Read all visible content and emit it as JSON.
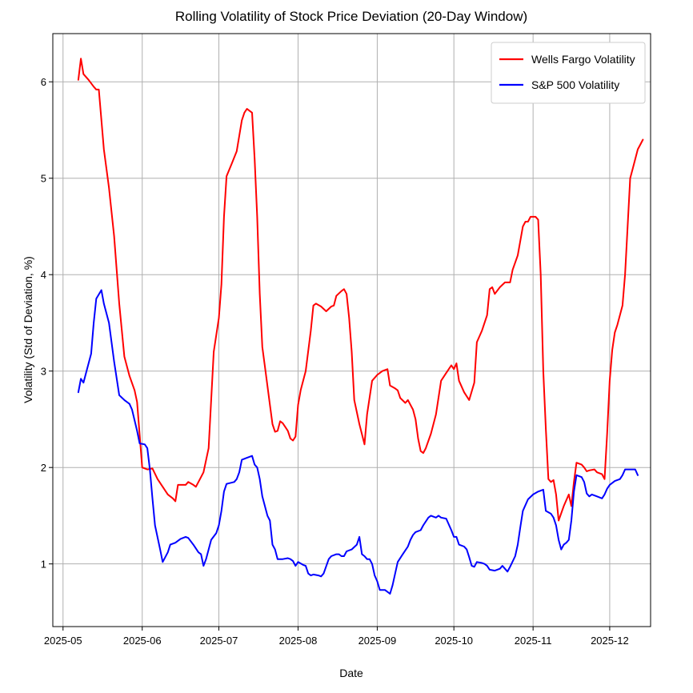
{
  "chart_data": {
    "type": "line",
    "title": "Rolling Volatility of Stock Price Deviation (20-Day Window)",
    "xlabel": "Date",
    "ylabel": "Volatility (Std of Deviation, %)",
    "ylim": [
      0.35,
      6.5
    ],
    "y_ticks": [
      1,
      2,
      3,
      4,
      5,
      6
    ],
    "x_start_day": -4,
    "x_end_day": 230,
    "x_ticks": [
      {
        "label": "2025-05",
        "day": 0
      },
      {
        "label": "2025-06",
        "day": 31
      },
      {
        "label": "2025-07",
        "day": 61
      },
      {
        "label": "2025-08",
        "day": 92
      },
      {
        "label": "2025-09",
        "day": 123
      },
      {
        "label": "2025-10",
        "day": 153
      },
      {
        "label": "2025-11",
        "day": 184
      },
      {
        "label": "2025-12",
        "day": 214
      }
    ],
    "grid": true,
    "legend_position": "top-right",
    "series": [
      {
        "name": "Wells Fargo Volatility",
        "color": "#ff0000",
        "points": [
          [
            6,
            6.02
          ],
          [
            7,
            6.24
          ],
          [
            8,
            6.08
          ],
          [
            10,
            6.02
          ],
          [
            12,
            5.95
          ],
          [
            13,
            5.92
          ],
          [
            14,
            5.92
          ],
          [
            16,
            5.3
          ],
          [
            18,
            4.9
          ],
          [
            20,
            4.4
          ],
          [
            22,
            3.7
          ],
          [
            24,
            3.15
          ],
          [
            26,
            2.95
          ],
          [
            28,
            2.8
          ],
          [
            29,
            2.68
          ],
          [
            31,
            2.0
          ],
          [
            33,
            1.98
          ],
          [
            35,
            1.99
          ],
          [
            37,
            1.88
          ],
          [
            39,
            1.8
          ],
          [
            41,
            1.72
          ],
          [
            43,
            1.68
          ],
          [
            44,
            1.65
          ],
          [
            45,
            1.82
          ],
          [
            47,
            1.82
          ],
          [
            48,
            1.82
          ],
          [
            49,
            1.85
          ],
          [
            51,
            1.82
          ],
          [
            52,
            1.8
          ],
          [
            54,
            1.9
          ],
          [
            55,
            1.95
          ],
          [
            57,
            2.2
          ],
          [
            59,
            3.2
          ],
          [
            61,
            3.55
          ],
          [
            62,
            3.9
          ],
          [
            63,
            4.6
          ],
          [
            64,
            5.02
          ],
          [
            66,
            5.15
          ],
          [
            68,
            5.28
          ],
          [
            70,
            5.6
          ],
          [
            71,
            5.68
          ],
          [
            72,
            5.72
          ],
          [
            73,
            5.7
          ],
          [
            74,
            5.68
          ],
          [
            75,
            5.2
          ],
          [
            76,
            4.6
          ],
          [
            77,
            3.8
          ],
          [
            78,
            3.25
          ],
          [
            79,
            3.05
          ],
          [
            81,
            2.65
          ],
          [
            82,
            2.45
          ],
          [
            83,
            2.37
          ],
          [
            84,
            2.38
          ],
          [
            85,
            2.48
          ],
          [
            86,
            2.46
          ],
          [
            87,
            2.42
          ],
          [
            88,
            2.38
          ],
          [
            89,
            2.3
          ],
          [
            90,
            2.28
          ],
          [
            91,
            2.32
          ],
          [
            92,
            2.65
          ],
          [
            93,
            2.8
          ],
          [
            95,
            3.0
          ],
          [
            97,
            3.42
          ],
          [
            98,
            3.68
          ],
          [
            99,
            3.7
          ],
          [
            101,
            3.67
          ],
          [
            103,
            3.62
          ],
          [
            105,
            3.67
          ],
          [
            106,
            3.68
          ],
          [
            107,
            3.78
          ],
          [
            109,
            3.83
          ],
          [
            110,
            3.85
          ],
          [
            111,
            3.8
          ],
          [
            112,
            3.55
          ],
          [
            113,
            3.2
          ],
          [
            114,
            2.7
          ],
          [
            116,
            2.45
          ],
          [
            118,
            2.24
          ],
          [
            119,
            2.55
          ],
          [
            121,
            2.9
          ],
          [
            123,
            2.96
          ],
          [
            125,
            3.0
          ],
          [
            127,
            3.02
          ],
          [
            128,
            2.85
          ],
          [
            130,
            2.82
          ],
          [
            131,
            2.8
          ],
          [
            132,
            2.72
          ],
          [
            134,
            2.67
          ],
          [
            135,
            2.7
          ],
          [
            137,
            2.6
          ],
          [
            138,
            2.5
          ],
          [
            139,
            2.3
          ],
          [
            140,
            2.17
          ],
          [
            141,
            2.15
          ],
          [
            142,
            2.2
          ],
          [
            144,
            2.35
          ],
          [
            146,
            2.55
          ],
          [
            148,
            2.9
          ],
          [
            150,
            2.98
          ],
          [
            152,
            3.06
          ],
          [
            153,
            3.02
          ],
          [
            154,
            3.08
          ],
          [
            155,
            2.9
          ],
          [
            157,
            2.78
          ],
          [
            159,
            2.7
          ],
          [
            161,
            2.88
          ],
          [
            162,
            3.3
          ],
          [
            164,
            3.42
          ],
          [
            166,
            3.58
          ],
          [
            167,
            3.85
          ],
          [
            168,
            3.87
          ],
          [
            169,
            3.8
          ],
          [
            171,
            3.87
          ],
          [
            173,
            3.92
          ],
          [
            175,
            3.92
          ],
          [
            176,
            4.05
          ],
          [
            178,
            4.2
          ],
          [
            180,
            4.5
          ],
          [
            181,
            4.55
          ],
          [
            182,
            4.55
          ],
          [
            183,
            4.6
          ],
          [
            185,
            4.6
          ],
          [
            186,
            4.57
          ],
          [
            187,
            4.0
          ],
          [
            188,
            3.0
          ],
          [
            189,
            2.4
          ],
          [
            190,
            1.88
          ],
          [
            191,
            1.85
          ],
          [
            192,
            1.87
          ],
          [
            193,
            1.72
          ],
          [
            194,
            1.45
          ],
          [
            196,
            1.6
          ],
          [
            198,
            1.72
          ],
          [
            199,
            1.6
          ],
          [
            200,
            1.85
          ],
          [
            201,
            2.05
          ],
          [
            203,
            2.03
          ],
          [
            204,
            2.0
          ],
          [
            205,
            1.96
          ],
          [
            206,
            1.97
          ],
          [
            208,
            1.98
          ],
          [
            209,
            1.95
          ],
          [
            211,
            1.93
          ],
          [
            212,
            1.88
          ],
          [
            213,
            2.35
          ],
          [
            214,
            2.9
          ],
          [
            215,
            3.22
          ],
          [
            216,
            3.4
          ],
          [
            217,
            3.48
          ],
          [
            219,
            3.68
          ],
          [
            220,
            4.0
          ],
          [
            221,
            4.5
          ],
          [
            222,
            5.0
          ],
          [
            223,
            5.1
          ],
          [
            225,
            5.3
          ],
          [
            226,
            5.35
          ],
          [
            227,
            5.4
          ]
        ]
      },
      {
        "name": "S&P 500 Volatility",
        "color": "#0000ff",
        "points": [
          [
            6,
            2.78
          ],
          [
            7,
            2.92
          ],
          [
            8,
            2.88
          ],
          [
            9,
            2.98
          ],
          [
            11,
            3.18
          ],
          [
            12,
            3.5
          ],
          [
            13,
            3.75
          ],
          [
            15,
            3.84
          ],
          [
            16,
            3.7
          ],
          [
            18,
            3.5
          ],
          [
            20,
            3.1
          ],
          [
            22,
            2.75
          ],
          [
            24,
            2.7
          ],
          [
            26,
            2.66
          ],
          [
            27,
            2.6
          ],
          [
            29,
            2.38
          ],
          [
            30,
            2.25
          ],
          [
            32,
            2.24
          ],
          [
            33,
            2.2
          ],
          [
            34,
            1.98
          ],
          [
            35,
            1.68
          ],
          [
            36,
            1.4
          ],
          [
            38,
            1.15
          ],
          [
            39,
            1.02
          ],
          [
            41,
            1.12
          ],
          [
            42,
            1.2
          ],
          [
            44,
            1.22
          ],
          [
            46,
            1.26
          ],
          [
            48,
            1.28
          ],
          [
            49,
            1.27
          ],
          [
            51,
            1.2
          ],
          [
            53,
            1.12
          ],
          [
            54,
            1.1
          ],
          [
            55,
            0.98
          ],
          [
            56,
            1.05
          ],
          [
            58,
            1.25
          ],
          [
            60,
            1.32
          ],
          [
            61,
            1.4
          ],
          [
            62,
            1.55
          ],
          [
            63,
            1.75
          ],
          [
            64,
            1.83
          ],
          [
            67,
            1.85
          ],
          [
            68,
            1.88
          ],
          [
            69,
            1.95
          ],
          [
            70,
            2.08
          ],
          [
            72,
            2.1
          ],
          [
            74,
            2.12
          ],
          [
            75,
            2.03
          ],
          [
            76,
            2.0
          ],
          [
            77,
            1.88
          ],
          [
            78,
            1.7
          ],
          [
            80,
            1.5
          ],
          [
            81,
            1.45
          ],
          [
            82,
            1.2
          ],
          [
            83,
            1.15
          ],
          [
            84,
            1.05
          ],
          [
            86,
            1.05
          ],
          [
            88,
            1.06
          ],
          [
            89,
            1.05
          ],
          [
            90,
            1.03
          ],
          [
            91,
            0.98
          ],
          [
            92,
            1.02
          ],
          [
            94,
            0.99
          ],
          [
            95,
            0.98
          ],
          [
            96,
            0.9
          ],
          [
            97,
            0.88
          ],
          [
            98,
            0.89
          ],
          [
            100,
            0.88
          ],
          [
            101,
            0.87
          ],
          [
            102,
            0.9
          ],
          [
            104,
            1.05
          ],
          [
            105,
            1.08
          ],
          [
            107,
            1.1
          ],
          [
            108,
            1.1
          ],
          [
            109,
            1.08
          ],
          [
            110,
            1.08
          ],
          [
            111,
            1.13
          ],
          [
            113,
            1.15
          ],
          [
            115,
            1.2
          ],
          [
            116,
            1.28
          ],
          [
            117,
            1.1
          ],
          [
            118,
            1.08
          ],
          [
            119,
            1.05
          ],
          [
            120,
            1.05
          ],
          [
            121,
            1.0
          ],
          [
            122,
            0.88
          ],
          [
            123,
            0.82
          ],
          [
            124,
            0.73
          ],
          [
            126,
            0.73
          ],
          [
            127,
            0.71
          ],
          [
            128,
            0.69
          ],
          [
            129,
            0.78
          ],
          [
            130,
            0.9
          ],
          [
            131,
            1.02
          ],
          [
            133,
            1.1
          ],
          [
            135,
            1.18
          ],
          [
            136,
            1.25
          ],
          [
            137,
            1.3
          ],
          [
            138,
            1.33
          ],
          [
            140,
            1.35
          ],
          [
            141,
            1.4
          ],
          [
            143,
            1.48
          ],
          [
            144,
            1.5
          ],
          [
            146,
            1.48
          ],
          [
            147,
            1.5
          ],
          [
            148,
            1.48
          ],
          [
            150,
            1.47
          ],
          [
            152,
            1.35
          ],
          [
            153,
            1.28
          ],
          [
            154,
            1.28
          ],
          [
            155,
            1.2
          ],
          [
            157,
            1.18
          ],
          [
            158,
            1.15
          ],
          [
            159,
            1.07
          ],
          [
            160,
            0.98
          ],
          [
            161,
            0.97
          ],
          [
            162,
            1.02
          ],
          [
            164,
            1.01
          ],
          [
            165,
            1.0
          ],
          [
            166,
            0.98
          ],
          [
            167,
            0.94
          ],
          [
            169,
            0.93
          ],
          [
            171,
            0.95
          ],
          [
            172,
            0.98
          ],
          [
            174,
            0.92
          ],
          [
            175,
            0.97
          ],
          [
            177,
            1.08
          ],
          [
            178,
            1.2
          ],
          [
            179,
            1.38
          ],
          [
            180,
            1.55
          ],
          [
            182,
            1.67
          ],
          [
            184,
            1.72
          ],
          [
            186,
            1.75
          ],
          [
            188,
            1.77
          ],
          [
            189,
            1.55
          ],
          [
            191,
            1.52
          ],
          [
            192,
            1.48
          ],
          [
            193,
            1.4
          ],
          [
            194,
            1.25
          ],
          [
            195,
            1.15
          ],
          [
            196,
            1.2
          ],
          [
            197,
            1.22
          ],
          [
            198,
            1.25
          ],
          [
            199,
            1.45
          ],
          [
            200,
            1.75
          ],
          [
            201,
            1.92
          ],
          [
            203,
            1.9
          ],
          [
            204,
            1.85
          ],
          [
            205,
            1.73
          ],
          [
            206,
            1.7
          ],
          [
            207,
            1.72
          ],
          [
            209,
            1.7
          ],
          [
            211,
            1.68
          ],
          [
            212,
            1.72
          ],
          [
            213,
            1.78
          ],
          [
            214,
            1.82
          ],
          [
            216,
            1.86
          ],
          [
            218,
            1.88
          ],
          [
            219,
            1.92
          ],
          [
            220,
            1.98
          ],
          [
            222,
            1.98
          ],
          [
            224,
            1.98
          ],
          [
            225,
            1.92
          ]
        ]
      }
    ]
  }
}
